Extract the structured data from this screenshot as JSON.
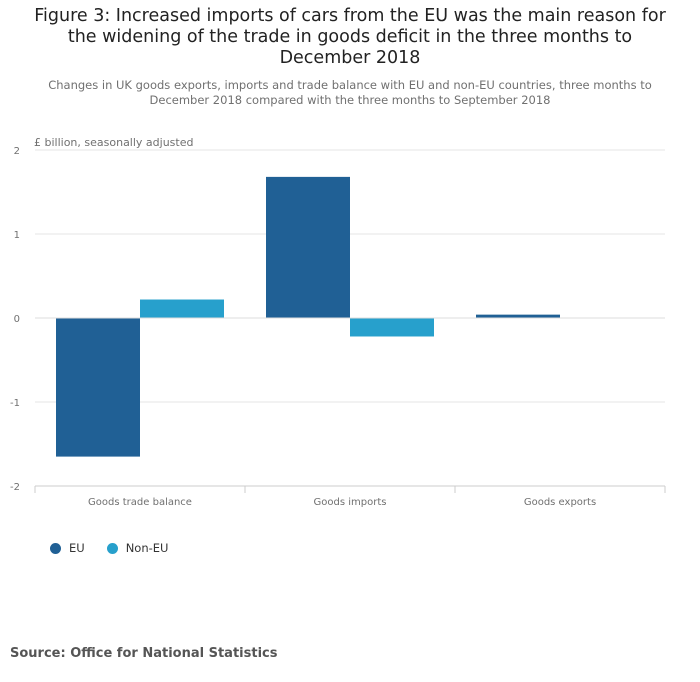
{
  "chart_data": {
    "type": "bar",
    "title": "Figure 3: Increased imports of cars from the EU was the main reason for the widening of the trade in goods deficit in the three months to December 2018",
    "subtitle": "Changes in UK goods exports, imports and trade balance with EU and non-EU countries, three months to December 2018 compared with the three months to September 2018",
    "unit_label": "£ billion, seasonally adjusted",
    "xlabel": "",
    "ylabel": "£ billion, seasonally adjusted",
    "categories": [
      "Goods trade balance",
      "Goods imports",
      "Goods exports"
    ],
    "series": [
      {
        "name": "EU",
        "color": "#206095",
        "values": [
          -1.65,
          1.68,
          0.04
        ]
      },
      {
        "name": "Non-EU",
        "color": "#27a0cc",
        "values": [
          0.22,
          -0.22,
          0.0
        ]
      }
    ],
    "ylim": [
      -2,
      2
    ],
    "yticks": [
      "2",
      "1",
      "0",
      "-1",
      "-2"
    ],
    "ytick_values": [
      2,
      1,
      0,
      -1,
      -2
    ],
    "grid": true,
    "legend_position": "bottom-left"
  },
  "source": "Source: Office for National Statistics"
}
